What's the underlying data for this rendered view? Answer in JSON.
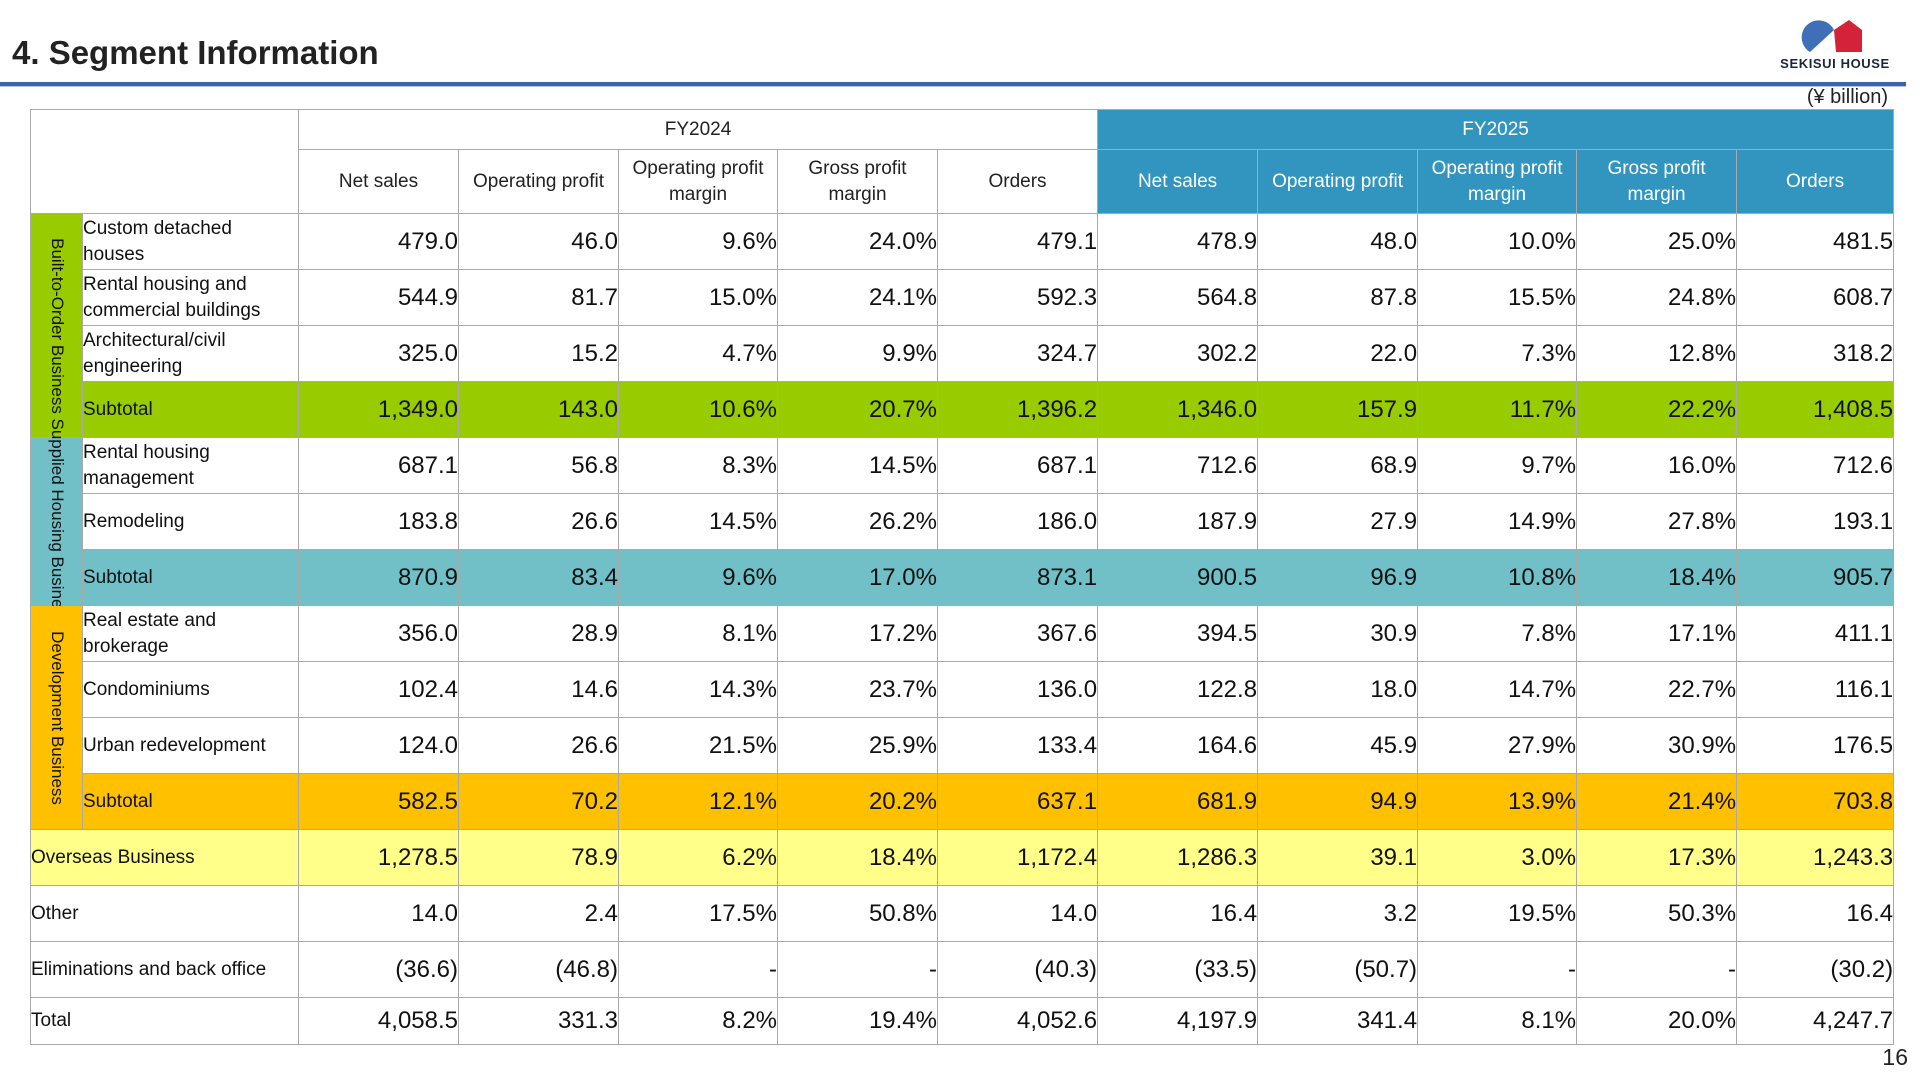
{
  "page": {
    "title": "4. Segment Information",
    "unit": "(¥ billion)",
    "page_number": "16"
  },
  "logo": {
    "text": "SEKISUI HOUSE"
  },
  "colors": {
    "fy2025_header": "#3195bf",
    "built_to_order": "#99cc00",
    "supplied_housing": "#71c0c7",
    "development": "#ffc000",
    "overseas": "#ffff8a",
    "title_rule": "#3a63b0"
  },
  "table": {
    "years": [
      "FY2024",
      "FY2025"
    ],
    "columns": [
      "Net sales",
      "Operating profit",
      "Operating profit margin",
      "Gross profit margin",
      "Orders"
    ],
    "segments": [
      {
        "name": "Built-to-Order Business",
        "rows": [
          {
            "label": "Custom detached houses",
            "values": [
              "479.0",
              "46.0",
              "9.6%",
              "24.0%",
              "479.1",
              "478.9",
              "48.0",
              "10.0%",
              "25.0%",
              "481.5"
            ]
          },
          {
            "label": "Rental housing and commercial buildings",
            "values": [
              "544.9",
              "81.7",
              "15.0%",
              "24.1%",
              "592.3",
              "564.8",
              "87.8",
              "15.5%",
              "24.8%",
              "608.7"
            ]
          },
          {
            "label": "Architectural/civil engineering",
            "values": [
              "325.0",
              "15.2",
              "4.7%",
              "9.9%",
              "324.7",
              "302.2",
              "22.0",
              "7.3%",
              "12.8%",
              "318.2"
            ]
          }
        ],
        "subtotal": {
          "label": "Subtotal",
          "values": [
            "1,349.0",
            "143.0",
            "10.6%",
            "20.7%",
            "1,396.2",
            "1,346.0",
            "157.9",
            "11.7%",
            "22.2%",
            "1,408.5"
          ]
        }
      },
      {
        "name": "Supplied Housing Business",
        "rows": [
          {
            "label": "Rental housing management",
            "values": [
              "687.1",
              "56.8",
              "8.3%",
              "14.5%",
              "687.1",
              "712.6",
              "68.9",
              "9.7%",
              "16.0%",
              "712.6"
            ]
          },
          {
            "label": "Remodeling",
            "values": [
              "183.8",
              "26.6",
              "14.5%",
              "26.2%",
              "186.0",
              "187.9",
              "27.9",
              "14.9%",
              "27.8%",
              "193.1"
            ]
          }
        ],
        "subtotal": {
          "label": "Subtotal",
          "values": [
            "870.9",
            "83.4",
            "9.6%",
            "17.0%",
            "873.1",
            "900.5",
            "96.9",
            "10.8%",
            "18.4%",
            "905.7"
          ]
        }
      },
      {
        "name": "Development Business",
        "rows": [
          {
            "label": "Real estate and brokerage",
            "values": [
              "356.0",
              "28.9",
              "8.1%",
              "17.2%",
              "367.6",
              "394.5",
              "30.9",
              "7.8%",
              "17.1%",
              "411.1"
            ]
          },
          {
            "label": "Condominiums",
            "values": [
              "102.4",
              "14.6",
              "14.3%",
              "23.7%",
              "136.0",
              "122.8",
              "18.0",
              "14.7%",
              "22.7%",
              "116.1"
            ]
          },
          {
            "label": "Urban redevelopment",
            "values": [
              "124.0",
              "26.6",
              "21.5%",
              "25.9%",
              "133.4",
              "164.6",
              "45.9",
              "27.9%",
              "30.9%",
              "176.5"
            ]
          }
        ],
        "subtotal": {
          "label": "Subtotal",
          "values": [
            "582.5",
            "70.2",
            "12.1%",
            "20.2%",
            "637.1",
            "681.9",
            "94.9",
            "13.9%",
            "21.4%",
            "703.8"
          ]
        }
      }
    ],
    "other_rows": [
      {
        "label": "Overseas Business",
        "values": [
          "1,278.5",
          "78.9",
          "6.2%",
          "18.4%",
          "1,172.4",
          "1,286.3",
          "39.1",
          "3.0%",
          "17.3%",
          "1,243.3"
        ]
      },
      {
        "label": "Other",
        "values": [
          "14.0",
          "2.4",
          "17.5%",
          "50.8%",
          "14.0",
          "16.4",
          "3.2",
          "19.5%",
          "50.3%",
          "16.4"
        ]
      },
      {
        "label": "Eliminations and back office",
        "values": [
          "(36.6)",
          "(46.8)",
          "-",
          "-",
          "(40.3)",
          "(33.5)",
          "(50.7)",
          "-",
          "-",
          "(30.2)"
        ]
      },
      {
        "label": "Total",
        "values": [
          "4,058.5",
          "331.3",
          "8.2%",
          "19.4%",
          "4,052.6",
          "4,197.9",
          "341.4",
          "8.1%",
          "20.0%",
          "4,247.7"
        ]
      }
    ]
  }
}
